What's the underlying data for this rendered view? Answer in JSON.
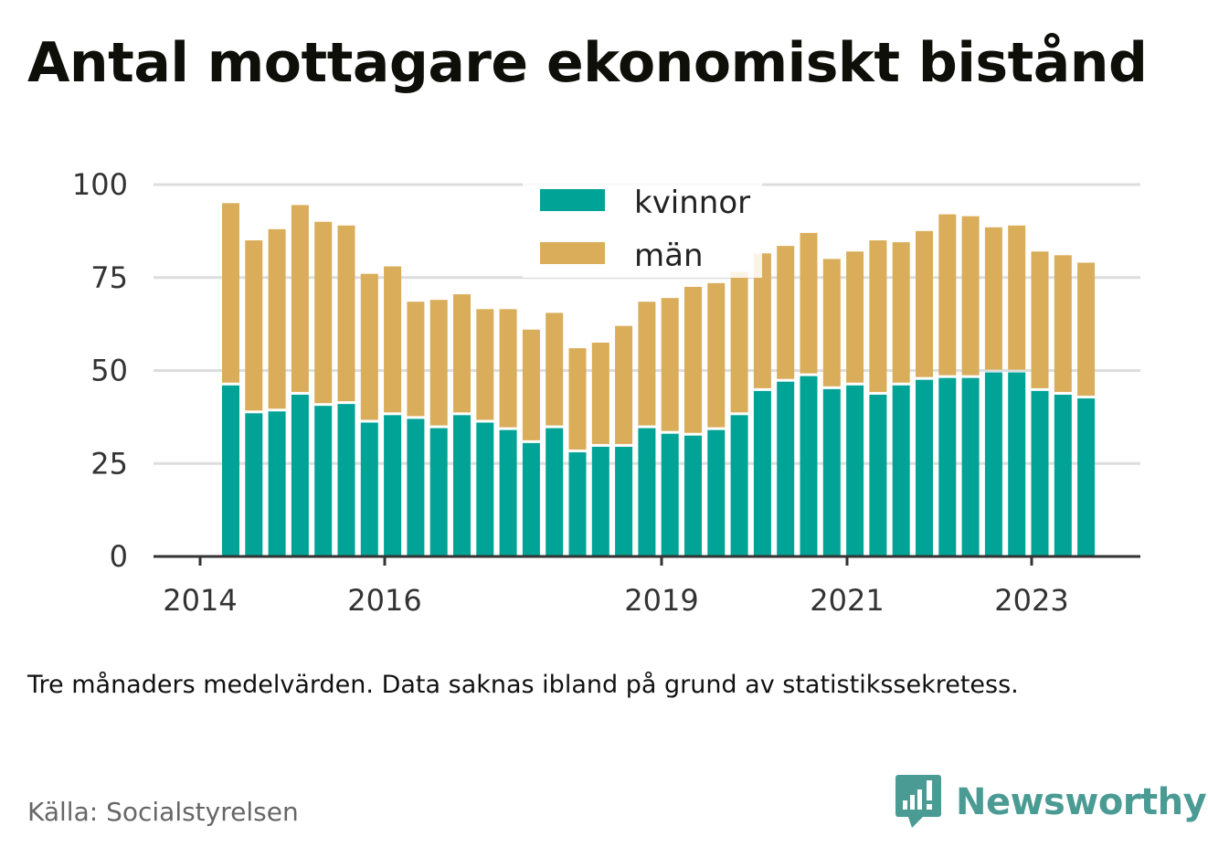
{
  "title": "Antal mottagare ekonomiskt bistånd",
  "note": "Tre månaders medelvärden. Data saknas ibland på grund av statistikssekretess.",
  "source": "Källa: Socialstyrelsen",
  "brand": "Newsworthy",
  "colors": {
    "kvinnor": "#00a396",
    "man": "#d9ad5a",
    "grid": "#dddddd",
    "axis": "#333333",
    "brand": "#4a9b93"
  },
  "chart_data": {
    "type": "bar",
    "stacked": true,
    "ylim": [
      0,
      100
    ],
    "yticks": [
      0,
      25,
      50,
      75,
      100
    ],
    "xtick_labels": [
      "2014",
      "2016",
      "2019",
      "2021",
      "2023"
    ],
    "grid": true,
    "legend_position": "top-center",
    "series": [
      {
        "name": "kvinnor",
        "color": "#00a396",
        "values": [
          46,
          38.5,
          39,
          43.5,
          40.5,
          41,
          36,
          38,
          37,
          34.5,
          38,
          36,
          34,
          30.5,
          34.5,
          28,
          29.5,
          29.5,
          34.5,
          33,
          32.5,
          34,
          38,
          44.5,
          47,
          48.5,
          45,
          46,
          43.5,
          46,
          47.5,
          48,
          48,
          49.5,
          49.5,
          44.5,
          43.5,
          42.5
        ]
      },
      {
        "name": "män",
        "color": "#d9ad5a",
        "values": [
          49,
          46.5,
          49,
          51,
          49.5,
          48,
          40,
          40,
          31.5,
          34.5,
          32.5,
          30.5,
          32.5,
          30.5,
          31,
          28,
          28,
          32.5,
          34,
          36.5,
          40,
          39.5,
          38.5,
          37,
          36.5,
          38.5,
          35,
          36,
          41.5,
          38.5,
          40,
          44,
          43.5,
          39,
          39.5,
          37.5,
          37.5,
          36.5
        ]
      }
    ]
  }
}
